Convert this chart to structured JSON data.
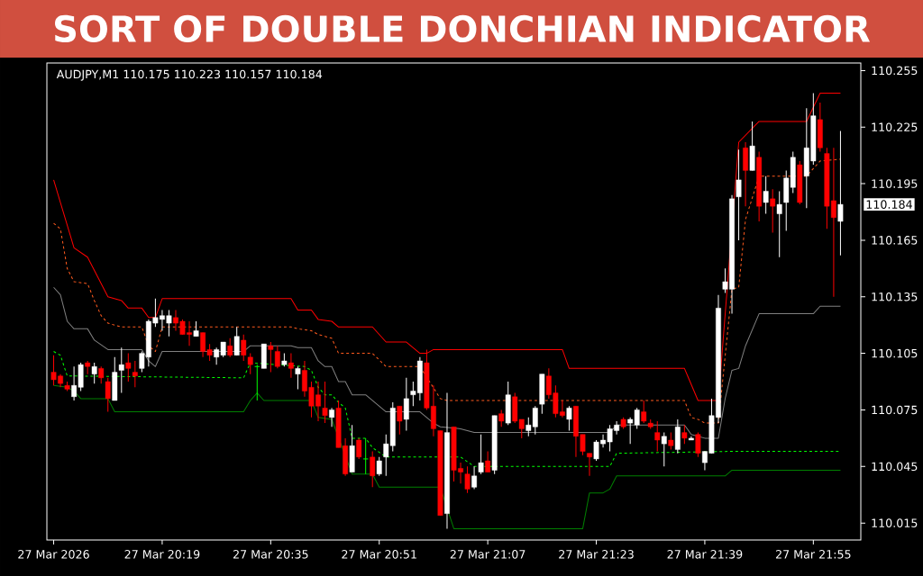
{
  "chart_data": {
    "type": "candlestick",
    "title": "SORT OF DOUBLE DONCHIAN INDICATOR",
    "subtitle": "AUDJPY,M1  110.175 110.223 110.157 110.184",
    "x": [
      "2026-03-27T20:03",
      "2026-03-27T20:04",
      "2026-03-27T20:05",
      "2026-03-27T20:06",
      "2026-03-27T20:07",
      "2026-03-27T20:08",
      "2026-03-27T20:09",
      "2026-03-27T20:10",
      "2026-03-27T20:11",
      "2026-03-27T20:12",
      "2026-03-27T20:13",
      "2026-03-27T20:14",
      "2026-03-27T20:15",
      "2026-03-27T20:16",
      "2026-03-27T20:17",
      "2026-03-27T20:18",
      "2026-03-27T20:19",
      "2026-03-27T20:20",
      "2026-03-27T20:21",
      "2026-03-27T20:22",
      "2026-03-27T20:23",
      "2026-03-27T20:24",
      "2026-03-27T20:25",
      "2026-03-27T20:26",
      "2026-03-27T20:27",
      "2026-03-27T20:28",
      "2026-03-27T20:29",
      "2026-03-27T20:30",
      "2026-03-27T20:31",
      "2026-03-27T20:32",
      "2026-03-27T20:33",
      "2026-03-27T20:34",
      "2026-03-27T20:35",
      "2026-03-27T20:36",
      "2026-03-27T20:37",
      "2026-03-27T20:38",
      "2026-03-27T20:39",
      "2026-03-27T20:40",
      "2026-03-27T20:41",
      "2026-03-27T20:42",
      "2026-03-27T20:43",
      "2026-03-27T20:44",
      "2026-03-27T20:45",
      "2026-03-27T20:46",
      "2026-03-27T20:47",
      "2026-03-27T20:48",
      "2026-03-27T20:49",
      "2026-03-27T20:50",
      "2026-03-27T20:51",
      "2026-03-27T20:52",
      "2026-03-27T20:53",
      "2026-03-27T20:54",
      "2026-03-27T20:55",
      "2026-03-27T20:56",
      "2026-03-27T20:57",
      "2026-03-27T20:58",
      "2026-03-27T20:59",
      "2026-03-27T21:00",
      "2026-03-27T21:01",
      "2026-03-27T21:02",
      "2026-03-27T21:03",
      "2026-03-27T21:04",
      "2026-03-27T21:05",
      "2026-03-27T21:06",
      "2026-03-27T21:07",
      "2026-03-27T21:08",
      "2026-03-27T21:09",
      "2026-03-27T21:10",
      "2026-03-27T21:11",
      "2026-03-27T21:12",
      "2026-03-27T21:13",
      "2026-03-27T21:14",
      "2026-03-27T21:15",
      "2026-03-27T21:16",
      "2026-03-27T21:17",
      "2026-03-27T21:18",
      "2026-03-27T21:19",
      "2026-03-27T21:20",
      "2026-03-27T21:21",
      "2026-03-27T21:22",
      "2026-03-27T21:23",
      "2026-03-27T21:24",
      "2026-03-27T21:25",
      "2026-03-27T21:26",
      "2026-03-27T21:27",
      "2026-03-27T21:28",
      "2026-03-27T21:29",
      "2026-03-27T21:30",
      "2026-03-27T21:31",
      "2026-03-27T21:32",
      "2026-03-27T21:33",
      "2026-03-27T21:34",
      "2026-03-27T21:35",
      "2026-03-27T21:36",
      "2026-03-27T21:37",
      "2026-03-27T21:38",
      "2026-03-27T21:39",
      "2026-03-27T21:40",
      "2026-03-27T21:41",
      "2026-03-27T21:42",
      "2026-03-27T21:43",
      "2026-03-27T21:44",
      "2026-03-27T21:45",
      "2026-03-27T21:46",
      "2026-03-27T21:47",
      "2026-03-27T21:48",
      "2026-03-27T21:49",
      "2026-03-27T21:50",
      "2026-03-27T21:51",
      "2026-03-27T21:52",
      "2026-03-27T21:53",
      "2026-03-27T21:54",
      "2026-03-27T21:55",
      "2026-03-27T21:56",
      "2026-03-27T21:57",
      "2026-03-27T21:58",
      "2026-03-27T21:59"
    ],
    "ohlc": [
      [
        110.095,
        110.104,
        110.088,
        110.091
      ],
      [
        110.093,
        110.094,
        110.087,
        110.089
      ],
      [
        110.088,
        110.09,
        110.085,
        110.086
      ],
      [
        110.082,
        110.098,
        110.08,
        110.088
      ],
      [
        110.087,
        110.1,
        110.085,
        110.099
      ],
      [
        110.1,
        110.101,
        110.094,
        110.098
      ],
      [
        110.094,
        110.1,
        110.089,
        110.098
      ],
      [
        110.097,
        110.098,
        110.089,
        110.092
      ],
      [
        110.09,
        110.092,
        110.074,
        110.081
      ],
      [
        110.08,
        110.103,
        110.08,
        110.095
      ],
      [
        110.096,
        110.108,
        110.084,
        110.099
      ],
      [
        110.1,
        110.105,
        110.09,
        110.097
      ],
      [
        110.095,
        110.101,
        110.087,
        110.093
      ],
      [
        110.097,
        110.106,
        110.095,
        110.105
      ],
      [
        110.103,
        110.123,
        110.098,
        110.122
      ],
      [
        110.121,
        110.134,
        110.119,
        110.124
      ],
      [
        110.123,
        110.128,
        110.117,
        110.125
      ],
      [
        110.121,
        110.128,
        110.114,
        110.125
      ],
      [
        110.124,
        110.128,
        110.117,
        110.121
      ],
      [
        110.122,
        110.123,
        110.115,
        110.115
      ],
      [
        110.116,
        110.122,
        110.109,
        110.115
      ],
      [
        110.114,
        110.122,
        110.114,
        110.117
      ],
      [
        110.116,
        110.116,
        110.103,
        110.106
      ],
      [
        110.107,
        110.11,
        110.101,
        110.104
      ],
      [
        110.103,
        110.108,
        110.099,
        110.107
      ],
      [
        110.104,
        110.111,
        110.103,
        110.111
      ],
      [
        110.109,
        110.113,
        110.103,
        110.104
      ],
      [
        110.104,
        110.119,
        110.104,
        110.114
      ],
      [
        110.112,
        110.115,
        110.101,
        110.104
      ],
      [
        110.103,
        110.105,
        110.094,
        110.099
      ],
      [
        110.098,
        110.099,
        110.08,
        110.098
      ],
      [
        110.097,
        110.11,
        110.097,
        110.11
      ],
      [
        110.109,
        110.111,
        110.095,
        110.107
      ],
      [
        110.106,
        110.109,
        110.097,
        110.098
      ],
      [
        110.099,
        110.105,
        110.098,
        110.101
      ],
      [
        110.1,
        110.105,
        110.092,
        110.097
      ],
      [
        110.094,
        110.098,
        110.086,
        110.097
      ],
      [
        110.096,
        110.101,
        110.082,
        110.085
      ],
      [
        110.087,
        110.09,
        110.071,
        110.077
      ],
      [
        110.083,
        110.09,
        110.069,
        110.077
      ],
      [
        110.076,
        110.09,
        110.068,
        110.072
      ],
      [
        110.071,
        110.076,
        110.066,
        110.075
      ],
      [
        110.076,
        110.08,
        110.055,
        110.055
      ],
      [
        110.056,
        110.06,
        110.04,
        110.041
      ],
      [
        110.042,
        110.067,
        110.042,
        110.056
      ],
      [
        110.059,
        110.06,
        110.049,
        110.05
      ],
      [
        110.049,
        110.06,
        110.041,
        110.049
      ],
      [
        110.05,
        110.053,
        110.034,
        110.04
      ],
      [
        110.041,
        110.05,
        110.04,
        110.048
      ],
      [
        110.05,
        110.062,
        110.04,
        110.057
      ],
      [
        110.056,
        110.079,
        110.053,
        110.076
      ],
      [
        110.077,
        110.077,
        110.062,
        110.069
      ],
      [
        110.07,
        110.092,
        110.064,
        110.081
      ],
      [
        110.083,
        110.09,
        110.077,
        110.085
      ],
      [
        110.084,
        110.103,
        110.08,
        110.101
      ],
      [
        110.1,
        110.107,
        110.075,
        110.076
      ],
      [
        110.077,
        110.088,
        110.061,
        110.065
      ],
      [
        110.064,
        110.064,
        110.019,
        110.019
      ],
      [
        110.02,
        110.084,
        110.012,
        110.063
      ],
      [
        110.066,
        110.066,
        110.037,
        110.043
      ],
      [
        110.044,
        110.047,
        110.036,
        110.042
      ],
      [
        110.041,
        110.045,
        110.031,
        110.033
      ],
      [
        110.034,
        110.045,
        110.033,
        110.04
      ],
      [
        110.042,
        110.062,
        110.041,
        110.047
      ],
      [
        110.048,
        110.053,
        110.042,
        110.042
      ],
      [
        110.043,
        110.072,
        110.041,
        110.072
      ],
      [
        110.073,
        110.075,
        110.066,
        110.069
      ],
      [
        110.068,
        110.09,
        110.067,
        110.083
      ],
      [
        110.082,
        110.084,
        110.068,
        110.069
      ],
      [
        110.07,
        110.07,
        110.06,
        110.065
      ],
      [
        110.064,
        110.071,
        110.061,
        110.067
      ],
      [
        110.066,
        110.077,
        110.062,
        110.076
      ],
      [
        110.078,
        110.094,
        110.073,
        110.094
      ],
      [
        110.093,
        110.097,
        110.081,
        110.083
      ],
      [
        110.084,
        110.088,
        110.071,
        110.073
      ],
      [
        110.074,
        110.08,
        110.071,
        110.072
      ],
      [
        110.07,
        110.077,
        110.064,
        110.076
      ],
      [
        110.077,
        110.077,
        110.05,
        110.061
      ],
      [
        110.062,
        110.062,
        110.051,
        110.053
      ],
      [
        110.052,
        110.052,
        110.04,
        110.05
      ],
      [
        110.049,
        110.059,
        110.048,
        110.058
      ],
      [
        110.057,
        110.062,
        110.055,
        110.059
      ],
      [
        110.058,
        110.067,
        110.053,
        110.065
      ],
      [
        110.064,
        110.069,
        110.062,
        110.067
      ],
      [
        110.07,
        110.071,
        110.065,
        110.066
      ],
      [
        110.068,
        110.071,
        110.057,
        110.07
      ],
      [
        110.067,
        110.076,
        110.065,
        110.075
      ],
      [
        110.074,
        110.08,
        110.068,
        110.069
      ],
      [
        110.068,
        110.07,
        110.065,
        110.066
      ],
      [
        110.063,
        110.069,
        110.053,
        110.059
      ],
      [
        110.057,
        110.063,
        110.045,
        110.061
      ],
      [
        110.059,
        110.063,
        110.054,
        110.056
      ],
      [
        110.054,
        110.07,
        110.052,
        110.066
      ],
      [
        110.063,
        110.067,
        110.057,
        110.06
      ],
      [
        110.059,
        110.061,
        110.059,
        110.06
      ],
      [
        110.062,
        110.063,
        110.05,
        110.052
      ],
      [
        110.047,
        110.053,
        110.043,
        110.053
      ],
      [
        110.052,
        110.081,
        110.052,
        110.072
      ],
      [
        110.071,
        110.136,
        110.068,
        110.129
      ],
      [
        110.139,
        110.15,
        110.137,
        110.143
      ],
      [
        110.139,
        110.189,
        110.126,
        110.187
      ],
      [
        110.188,
        110.213,
        110.165,
        110.197
      ],
      [
        110.214,
        110.217,
        110.183,
        110.202
      ],
      [
        110.202,
        110.228,
        110.202,
        110.215
      ],
      [
        110.209,
        110.212,
        110.175,
        110.183
      ],
      [
        110.185,
        110.199,
        110.179,
        110.191
      ],
      [
        110.187,
        110.192,
        110.169,
        110.183
      ],
      [
        110.179,
        110.191,
        110.156,
        110.184
      ],
      [
        110.185,
        110.202,
        110.17,
        110.198
      ],
      [
        110.193,
        110.212,
        110.19,
        110.209
      ],
      [
        110.205,
        110.207,
        110.184,
        110.185
      ],
      [
        110.199,
        110.235,
        110.182,
        110.214
      ],
      [
        110.207,
        110.243,
        110.205,
        110.231
      ],
      [
        110.229,
        110.238,
        110.212,
        110.214
      ],
      [
        110.211,
        110.214,
        110.171,
        110.183
      ],
      [
        110.186,
        110.214,
        110.135,
        110.177
      ],
      [
        110.175,
        110.223,
        110.157,
        110.184
      ]
    ],
    "colors": [
      "#ff0000",
      "#ff0000",
      "#ff0000",
      "#ffffff",
      "#ffffff",
      "#ff0000",
      "#ffffff",
      "#ff0000",
      "#ff0000",
      "#ffffff",
      "#ffffff",
      "#ff0000",
      "#ff0000",
      "#ffffff",
      "#ffffff",
      "#ffffff",
      "#ffffff",
      "#ffffff",
      "#ff0000",
      "#ff0000",
      "#ff0000",
      "#ffffff",
      "#ff0000",
      "#ff0000",
      "#ffffff",
      "#ffffff",
      "#ff0000",
      "#ffffff",
      "#ff0000",
      "#ff0000",
      "#00ff00",
      "#ffffff",
      "#ff0000",
      "#ff0000",
      "#ffffff",
      "#ff0000",
      "#ffffff",
      "#ff0000",
      "#ff0000",
      "#ff0000",
      "#ff0000",
      "#ffffff",
      "#ff0000",
      "#ff0000",
      "#ffffff",
      "#ff0000",
      "#00ff00",
      "#ff0000",
      "#ffffff",
      "#ffffff",
      "#ffffff",
      "#ff0000",
      "#ffffff",
      "#ffffff",
      "#ffffff",
      "#ff0000",
      "#ff0000",
      "#ff0000",
      "#ffffff",
      "#ff0000",
      "#ff0000",
      "#ff0000",
      "#ffffff",
      "#ffffff",
      "#ff0000",
      "#ffffff",
      "#ff0000",
      "#ffffff",
      "#ff0000",
      "#ff0000",
      "#ffffff",
      "#ffffff",
      "#ffffff",
      "#ff0000",
      "#ff0000",
      "#ff0000",
      "#ffffff",
      "#ff0000",
      "#ff0000",
      "#ff0000",
      "#ffffff",
      "#ffffff",
      "#ffffff",
      "#ffffff",
      "#ff0000",
      "#ffffff",
      "#ffffff",
      "#ff0000",
      "#ff0000",
      "#ff0000",
      "#ffffff",
      "#ff0000",
      "#ffffff",
      "#ff0000",
      "#ffffff",
      "#ff0000",
      "#ffffff",
      "#ffffff",
      "#ffffff",
      "#ffffff",
      "#ffffff",
      "#ffffff",
      "#ff0000",
      "#ffffff",
      "#ff0000",
      "#ffffff",
      "#ff0000",
      "#ffffff",
      "#ffffff",
      "#ffffff",
      "#ff0000",
      "#ffffff",
      "#ffffff",
      "#ff0000",
      "#ff0000",
      "#ff0000",
      "#ffffff"
    ],
    "series": [
      {
        "type": "line",
        "color": "#ff0000",
        "line_style": "solid",
        "x": [
          "2026-03-27T20:03",
          "2026-03-27T20:04",
          "2026-03-27T20:06",
          "2026-03-27T20:08",
          "2026-03-27T20:11",
          "2026-03-27T20:13",
          "2026-03-27T20:14",
          "2026-03-27T20:16",
          "2026-03-27T20:17",
          "2026-03-27T20:18",
          "2026-03-27T20:19",
          "2026-03-27T20:38",
          "2026-03-27T20:39",
          "2026-03-27T20:41",
          "2026-03-27T20:42",
          "2026-03-27T20:44",
          "2026-03-27T20:45",
          "2026-03-27T20:50",
          "2026-03-27T20:52",
          "2026-03-27T20:55",
          "2026-03-27T20:57",
          "2026-03-27T20:58",
          "2026-03-27T20:59",
          "2026-03-27T21:18",
          "2026-03-27T21:19",
          "2026-03-27T21:36",
          "2026-03-27T21:38",
          "2026-03-27T21:41",
          "2026-03-27T21:42",
          "2026-03-27T21:43",
          "2026-03-27T21:44",
          "2026-03-27T21:47",
          "2026-03-27T21:54",
          "2026-03-27T21:56",
          "2026-03-27T21:59"
        ],
        "values": [
          110.197,
          110.185,
          110.161,
          110.156,
          110.135,
          110.133,
          110.129,
          110.129,
          110.124,
          110.124,
          110.134,
          110.134,
          110.128,
          110.128,
          110.123,
          110.122,
          110.119,
          110.119,
          110.111,
          110.111,
          110.105,
          110.105,
          110.107,
          110.107,
          110.097,
          110.097,
          110.08,
          110.08,
          null,
          null,
          110.217,
          110.228,
          110.228,
          110.243,
          110.243
        ]
      },
      {
        "type": "line",
        "color": "#ff5a1e",
        "line_style": "dashed",
        "x": [
          "2026-03-27T20:03",
          "2026-03-27T20:04",
          "2026-03-27T20:05",
          "2026-03-27T20:06",
          "2026-03-27T20:08",
          "2026-03-27T20:09",
          "2026-03-27T20:10",
          "2026-03-27T20:11",
          "2026-03-27T20:12",
          "2026-03-27T20:13",
          "2026-03-27T20:16",
          "2026-03-27T20:17",
          "2026-03-27T20:18",
          "2026-03-27T20:19",
          "2026-03-27T20:38",
          "2026-03-27T20:39",
          "2026-03-27T20:41",
          "2026-03-27T20:42",
          "2026-03-27T20:43",
          "2026-03-27T20:44",
          "2026-03-27T20:45",
          "2026-03-27T20:50",
          "2026-03-27T20:52",
          "2026-03-27T20:57",
          "2026-03-27T20:58",
          "2026-03-27T21:00",
          "2026-03-27T21:01",
          "2026-03-27T21:23",
          "2026-03-27T21:36",
          "2026-03-27T21:37",
          "2026-03-27T21:38",
          "2026-03-27T21:39",
          "2026-03-27T21:41",
          "2026-03-27T21:43",
          "2026-03-27T21:44",
          "2026-03-27T21:45",
          "2026-03-27T21:47",
          "2026-03-27T21:54",
          "2026-03-27T21:56",
          "2026-03-27T21:59"
        ],
        "values": [
          110.174,
          110.171,
          110.15,
          110.143,
          110.142,
          110.133,
          110.125,
          110.121,
          110.12,
          110.119,
          110.119,
          110.109,
          110.106,
          110.119,
          110.119,
          110.118,
          110.117,
          110.115,
          110.114,
          110.113,
          110.105,
          110.105,
          110.098,
          110.098,
          null,
          110.081,
          110.08,
          110.08,
          110.08,
          110.071,
          110.07,
          110.068,
          110.068,
          110.139,
          110.14,
          110.176,
          110.199,
          110.199,
          110.207,
          110.208
        ]
      },
      {
        "type": "line",
        "color": "#808080",
        "line_style": "solid",
        "x": [
          "2026-03-27T20:03",
          "2026-03-27T20:04",
          "2026-03-27T20:05",
          "2026-03-27T20:06",
          "2026-03-27T20:08",
          "2026-03-27T20:09",
          "2026-03-27T20:11",
          "2026-03-27T20:16",
          "2026-03-27T20:17",
          "2026-03-27T20:18",
          "2026-03-27T20:19",
          "2026-03-27T20:31",
          "2026-03-27T20:32",
          "2026-03-27T20:38",
          "2026-03-27T20:39",
          "2026-03-27T20:41",
          "2026-03-27T20:42",
          "2026-03-27T20:43",
          "2026-03-27T20:44",
          "2026-03-27T20:45",
          "2026-03-27T20:46",
          "2026-03-27T20:47",
          "2026-03-27T20:49",
          "2026-03-27T20:52",
          "2026-03-27T20:57",
          "2026-03-27T20:59",
          "2026-03-27T21:00",
          "2026-03-27T21:03",
          "2026-03-27T21:05",
          "2026-03-27T21:25",
          "2026-03-27T21:26",
          "2026-03-27T21:36",
          "2026-03-27T21:37",
          "2026-03-27T21:39",
          "2026-03-27T21:41",
          "2026-03-27T21:42",
          "2026-03-27T21:43",
          "2026-03-27T21:44",
          "2026-03-27T21:45",
          "2026-03-27T21:47",
          "2026-03-27T21:55",
          "2026-03-27T21:56",
          "2026-03-27T21:59"
        ],
        "values": [
          110.14,
          110.136,
          110.122,
          110.118,
          110.118,
          110.112,
          110.107,
          110.107,
          110.101,
          110.098,
          110.106,
          110.106,
          110.109,
          110.109,
          110.108,
          110.108,
          110.101,
          110.098,
          110.098,
          110.09,
          110.09,
          110.083,
          110.083,
          110.074,
          110.074,
          110.068,
          110.066,
          110.065,
          110.063,
          110.063,
          110.067,
          110.067,
          110.062,
          110.06,
          110.06,
          110.081,
          110.096,
          110.097,
          110.109,
          110.126,
          110.126,
          110.13,
          110.13
        ]
      },
      {
        "type": "line",
        "color": "#00ff00",
        "line_style": "dashed",
        "x": [
          "2026-03-27T20:03",
          "2026-03-27T20:04",
          "2026-03-27T20:05",
          "2026-03-27T20:31",
          "2026-03-27T20:32",
          "2026-03-27T20:40",
          "2026-03-27T20:41",
          "2026-03-27T20:42",
          "2026-03-27T20:43",
          "2026-03-27T20:44",
          "2026-03-27T20:45",
          "2026-03-27T20:46",
          "2026-03-27T20:47",
          "2026-03-27T20:49",
          "2026-03-27T20:50",
          "2026-03-27T20:52",
          "2026-03-27T21:03",
          "2026-03-27T21:05",
          "2026-03-27T21:25",
          "2026-03-27T21:26",
          "2026-03-27T21:43",
          "2026-03-27T21:59"
        ],
        "values": [
          110.106,
          110.104,
          110.093,
          110.092,
          110.1,
          110.098,
          110.096,
          110.087,
          110.083,
          110.083,
          110.079,
          110.076,
          110.06,
          110.06,
          110.055,
          110.05,
          110.05,
          110.045,
          110.045,
          110.052,
          110.053,
          110.053
        ]
      },
      {
        "type": "line",
        "color": "#008000",
        "line_style": "solid",
        "x": [
          "2026-03-27T20:03",
          "2026-03-27T20:05",
          "2026-03-27T20:06",
          "2026-03-27T20:07",
          "2026-03-27T20:11",
          "2026-03-27T20:12",
          "2026-03-27T20:31",
          "2026-03-27T20:32",
          "2026-03-27T20:33",
          "2026-03-27T20:34",
          "2026-03-27T20:41",
          "2026-03-27T20:42",
          "2026-03-27T20:44",
          "2026-03-27T20:45",
          "2026-03-27T20:47",
          "2026-03-27T20:50",
          "2026-03-27T20:51",
          "2026-03-27T21:00",
          "2026-03-27T21:02",
          "2026-03-27T21:21",
          "2026-03-27T21:22",
          "2026-03-27T21:24",
          "2026-03-27T21:25",
          "2026-03-27T21:26",
          "2026-03-27T21:42",
          "2026-03-27T21:43",
          "2026-03-27T21:59"
        ],
        "values": [
          110.088,
          110.087,
          110.085,
          110.081,
          110.081,
          110.074,
          110.074,
          110.08,
          110.084,
          110.08,
          110.08,
          110.071,
          110.07,
          null,
          110.041,
          110.041,
          110.034,
          110.034,
          110.012,
          110.012,
          110.031,
          110.031,
          110.033,
          110.04,
          110.04,
          110.043,
          110.043
        ]
      }
    ],
    "xlim": [
      "2026-03-27T20:02",
      "2026-03-27T22:02"
    ],
    "xticks": [
      {
        "value": "2026-03-27T20:03",
        "label": "27 Mar 2026"
      },
      {
        "value": "2026-03-27T20:19",
        "label": "27 Mar 20:19"
      },
      {
        "value": "2026-03-27T20:35",
        "label": "27 Mar 20:35"
      },
      {
        "value": "2026-03-27T20:51",
        "label": "27 Mar 20:51"
      },
      {
        "value": "2026-03-27T21:07",
        "label": "27 Mar 21:07"
      },
      {
        "value": "2026-03-27T21:23",
        "label": "27 Mar 21:23"
      },
      {
        "value": "2026-03-27T21:39",
        "label": "27 Mar 21:39"
      },
      {
        "value": "2026-03-27T21:55",
        "label": "27 Mar 21:55"
      }
    ],
    "ylim": [
      110.006,
      110.259
    ],
    "yticks": [
      {
        "value": 110.015,
        "label": "110.015"
      },
      {
        "value": 110.045,
        "label": "110.045"
      },
      {
        "value": 110.075,
        "label": "110.075"
      },
      {
        "value": 110.105,
        "label": "110.105"
      },
      {
        "value": 110.135,
        "label": "110.135"
      },
      {
        "value": 110.165,
        "label": "110.165"
      },
      {
        "value": 110.195,
        "label": "110.195"
      },
      {
        "value": 110.225,
        "label": "110.225"
      },
      {
        "value": 110.255,
        "label": "110.255"
      }
    ],
    "annotations": [
      "110.184"
    ]
  }
}
